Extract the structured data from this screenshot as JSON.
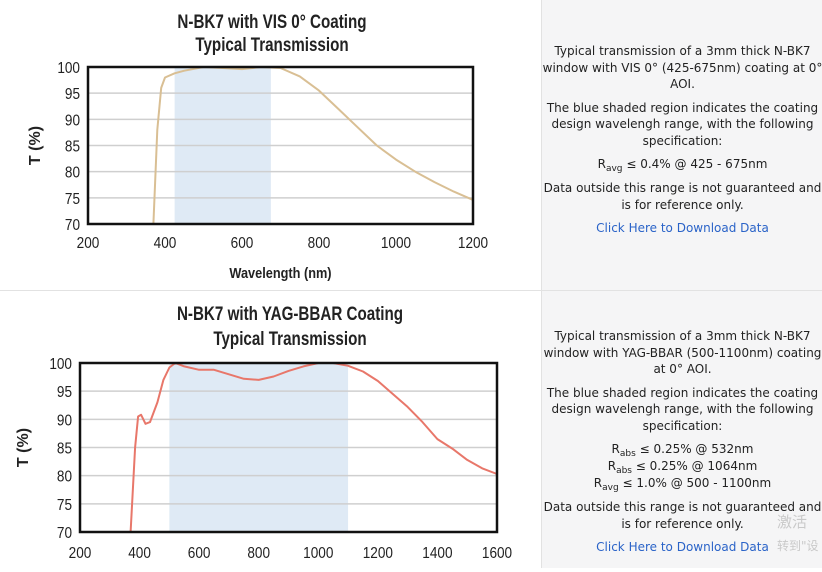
{
  "chart_data": [
    {
      "type": "line",
      "title": "N-BK7 with VIS 0° Coating",
      "subtitle": "Typical Transmission",
      "xlabel": "Wavelength (nm)",
      "ylabel": "T (%)",
      "xlim": [
        200,
        1200
      ],
      "ylim": [
        70,
        100
      ],
      "xticks": [
        200,
        400,
        600,
        800,
        1000,
        1200
      ],
      "yticks": [
        70,
        75,
        80,
        85,
        90,
        95,
        100
      ],
      "grid": true,
      "shaded_region": [
        425,
        675
      ],
      "shade_color": "#dfeaf5",
      "line_color": "#d9bf94",
      "x": [
        370,
        380,
        390,
        400,
        425,
        450,
        500,
        550,
        600,
        650,
        700,
        750,
        800,
        850,
        900,
        950,
        1000,
        1050,
        1100,
        1150,
        1200
      ],
      "y": [
        70,
        88,
        96,
        98,
        98.8,
        99.3,
        100,
        99.8,
        99.6,
        100,
        99.8,
        98.2,
        95.5,
        92,
        88.5,
        85,
        82.3,
        80,
        78,
        76.2,
        74.6
      ]
    },
    {
      "type": "line",
      "title": "N-BK7 with YAG-BBAR Coating",
      "subtitle": "Typical Transmission",
      "ylabel": "T (%)",
      "xlim": [
        200,
        1600
      ],
      "ylim": [
        70,
        100
      ],
      "xticks": [
        200,
        400,
        600,
        800,
        1000,
        1200,
        1400,
        1600
      ],
      "yticks": [
        70,
        75,
        80,
        85,
        90,
        95,
        100
      ],
      "grid": true,
      "shaded_region": [
        500,
        1100
      ],
      "shade_color": "#dfeaf5",
      "line_color": "#e8776a",
      "x": [
        370,
        385,
        395,
        405,
        420,
        435,
        460,
        480,
        500,
        520,
        550,
        600,
        650,
        700,
        750,
        800,
        850,
        900,
        950,
        1000,
        1050,
        1100,
        1150,
        1200,
        1250,
        1300,
        1350,
        1400,
        1450,
        1500,
        1550,
        1600
      ],
      "y": [
        70,
        85,
        90.5,
        90.8,
        89.2,
        89.5,
        93,
        97,
        99.2,
        100,
        99.4,
        98.8,
        98.8,
        98,
        97.2,
        97,
        97.6,
        98.6,
        99.4,
        100,
        100,
        99.5,
        98.5,
        96.8,
        94.5,
        92.2,
        89.5,
        86.5,
        84.8,
        82.8,
        81.3,
        80.3
      ]
    }
  ],
  "panel1": {
    "p1": "Typical transmission of a 3mm thick N-BK7 window with VIS 0° (425-675nm) coating at 0° AOI.",
    "p2": "The blue shaded region indicates the coating design wavelengh range, with the following specification:",
    "spec": [
      {
        "sym": "R",
        "sub": "avg",
        "text": " ≤ 0.4% @ 425 - 675nm"
      }
    ],
    "p3": "Data outside this range is not guaranteed and is for reference only.",
    "link": "Click Here to Download Data"
  },
  "panel2": {
    "p1": "Typical transmission of a 3mm thick N-BK7 window with YAG-BBAR (500-1100nm) coating at 0° AOI.",
    "p2": "The blue shaded region indicates the coating design wavelengh range, with the following specification:",
    "spec": [
      {
        "sym": "R",
        "sub": "abs",
        "text": " ≤ 0.25% @ 532nm"
      },
      {
        "sym": "R",
        "sub": "abs",
        "text": " ≤ 0.25% @ 1064nm"
      },
      {
        "sym": "R",
        "sub": "avg",
        "text": " ≤ 1.0% @ 500 - 1100nm"
      }
    ],
    "p3": "Data outside this range is not guaranteed and is for reference only.",
    "link": "Click Here to Download Data"
  },
  "watermark": {
    "line1": "激活",
    "line2": "转到\"设"
  }
}
